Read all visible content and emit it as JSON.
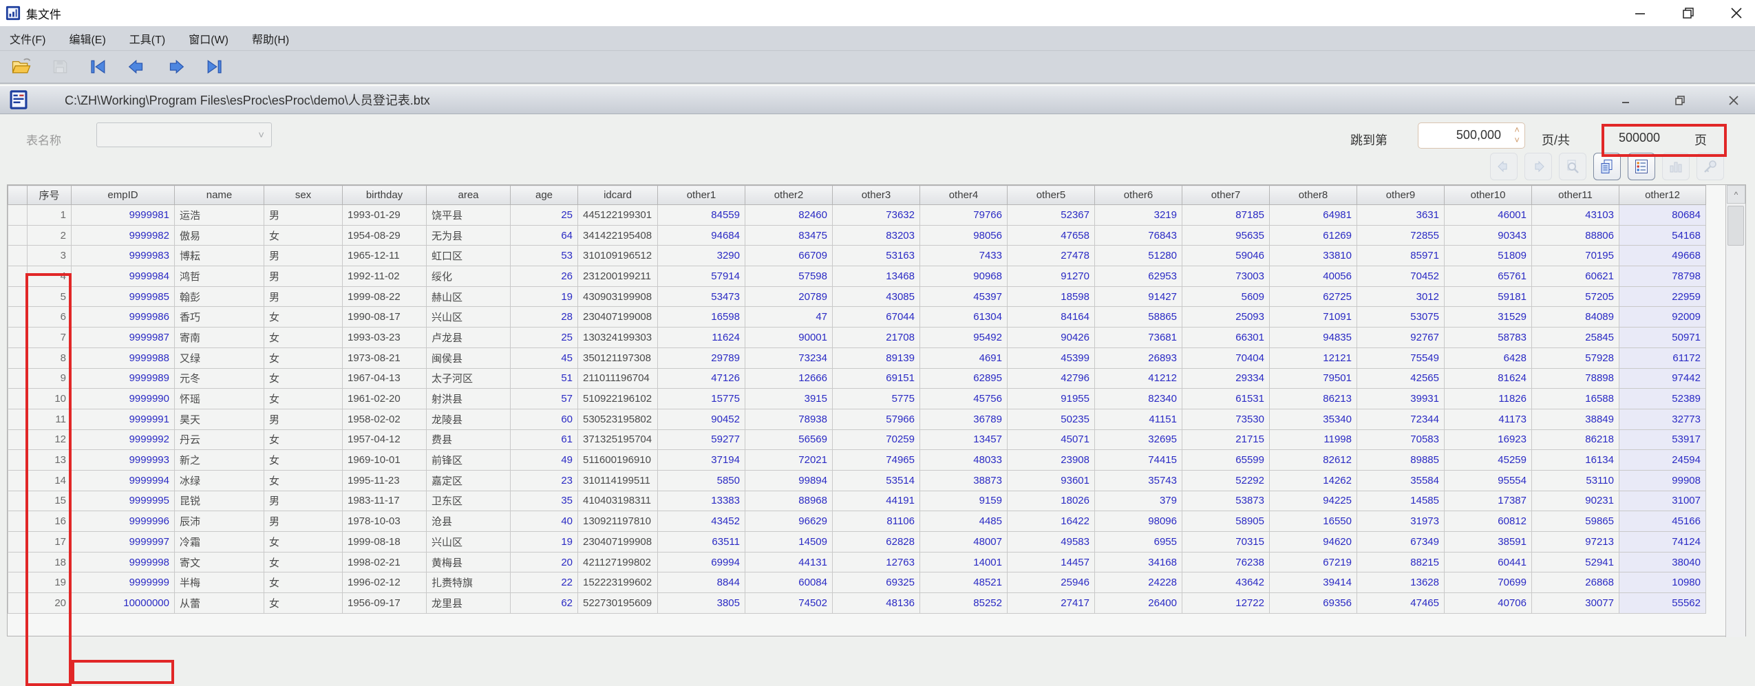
{
  "colors": {
    "annotation_red": "#e12727",
    "number_blue": "#2a2ac4",
    "selected_column_bg": "#e9eaf7"
  },
  "window": {
    "title": "集文件"
  },
  "menu": {
    "items": [
      "文件(F)",
      "编辑(E)",
      "工具(T)",
      "窗口(W)",
      "帮助(H)"
    ]
  },
  "inner_window": {
    "path": "C:\\ZH\\Working\\Program Files\\esProc\\esProc\\demo\\人员登记表.btx"
  },
  "pager": {
    "table_name_label": "表名称",
    "table_name_value": "",
    "jump_label": "跳到第",
    "jump_value": "500,000",
    "of_label": "页/共",
    "total_pages": "500000",
    "unit_label": "页"
  },
  "scrollbar": {
    "up_glyph": "^"
  },
  "table": {
    "columns": [
      "序号",
      "empID",
      "name",
      "sex",
      "birthday",
      "area",
      "age",
      "idcard",
      "other1",
      "other2",
      "other3",
      "other4",
      "other5",
      "other6",
      "other7",
      "other8",
      "other9",
      "other10",
      "other11",
      "other12"
    ],
    "rows": [
      [
        "1",
        "9999981",
        "运浩",
        "男",
        "1993-01-29",
        "饶平县",
        "25",
        "445122199301",
        "84559",
        "82460",
        "73632",
        "79766",
        "52367",
        "3219",
        "87185",
        "64981",
        "3631",
        "46001",
        "43103",
        "80684"
      ],
      [
        "2",
        "9999982",
        "傲易",
        "女",
        "1954-08-29",
        "无为县",
        "64",
        "341422195408",
        "94684",
        "83475",
        "83203",
        "98056",
        "47658",
        "76843",
        "95635",
        "61269",
        "72855",
        "90343",
        "88806",
        "54168"
      ],
      [
        "3",
        "9999983",
        "博耘",
        "男",
        "1965-12-11",
        "虹口区",
        "53",
        "310109196512",
        "3290",
        "66709",
        "53163",
        "7433",
        "27478",
        "51280",
        "59046",
        "33810",
        "85971",
        "51809",
        "70195",
        "49668"
      ],
      [
        "4",
        "9999984",
        "鸿哲",
        "男",
        "1992-11-02",
        "绥化",
        "26",
        "231200199211",
        "57914",
        "57598",
        "13468",
        "90968",
        "91270",
        "62953",
        "73003",
        "40056",
        "70452",
        "65761",
        "60621",
        "78798"
      ],
      [
        "5",
        "9999985",
        "翰彭",
        "男",
        "1999-08-22",
        "赫山区",
        "19",
        "430903199908",
        "53473",
        "20789",
        "43085",
        "45397",
        "18598",
        "91427",
        "5609",
        "62725",
        "3012",
        "59181",
        "57205",
        "22959"
      ],
      [
        "6",
        "9999986",
        "香巧",
        "女",
        "1990-08-17",
        "兴山区",
        "28",
        "230407199008",
        "16598",
        "47",
        "67044",
        "61304",
        "84164",
        "58865",
        "25093",
        "71091",
        "53075",
        "31529",
        "84089",
        "92009"
      ],
      [
        "7",
        "9999987",
        "寄南",
        "女",
        "1993-03-23",
        "卢龙县",
        "25",
        "130324199303",
        "11624",
        "90001",
        "21708",
        "95492",
        "90426",
        "73681",
        "66301",
        "94835",
        "92767",
        "58783",
        "25845",
        "50971"
      ],
      [
        "8",
        "9999988",
        "又绿",
        "女",
        "1973-08-21",
        "闽侯县",
        "45",
        "350121197308",
        "29789",
        "73234",
        "89139",
        "4691",
        "45399",
        "26893",
        "70404",
        "12121",
        "75549",
        "6428",
        "57928",
        "61172"
      ],
      [
        "9",
        "9999989",
        "元冬",
        "女",
        "1967-04-13",
        "太子河区",
        "51",
        "211011196704",
        "47126",
        "12666",
        "69151",
        "62895",
        "42796",
        "41212",
        "29334",
        "79501",
        "42565",
        "81624",
        "78898",
        "97442"
      ],
      [
        "10",
        "9999990",
        "怀瑶",
        "女",
        "1961-02-20",
        "射洪县",
        "57",
        "510922196102",
        "15775",
        "3915",
        "5775",
        "45756",
        "91955",
        "82340",
        "61531",
        "86213",
        "39931",
        "11826",
        "16588",
        "52389"
      ],
      [
        "11",
        "9999991",
        "昊天",
        "男",
        "1958-02-02",
        "龙陵县",
        "60",
        "530523195802",
        "90452",
        "78938",
        "57966",
        "36789",
        "50235",
        "41151",
        "73530",
        "35340",
        "72344",
        "41173",
        "38849",
        "32773"
      ],
      [
        "12",
        "9999992",
        "丹云",
        "女",
        "1957-04-12",
        "费县",
        "61",
        "371325195704",
        "59277",
        "56569",
        "70259",
        "13457",
        "45071",
        "32695",
        "21715",
        "11998",
        "70583",
        "16923",
        "86218",
        "53917"
      ],
      [
        "13",
        "9999993",
        "新之",
        "女",
        "1969-10-01",
        "前锋区",
        "49",
        "511600196910",
        "37194",
        "72021",
        "74965",
        "48033",
        "23908",
        "74415",
        "65599",
        "82612",
        "89885",
        "45259",
        "16134",
        "24594"
      ],
      [
        "14",
        "9999994",
        "冰绿",
        "女",
        "1995-11-23",
        "嘉定区",
        "23",
        "310114199511",
        "5850",
        "99894",
        "53514",
        "38873",
        "93601",
        "35743",
        "52292",
        "14262",
        "35584",
        "95554",
        "53110",
        "99908"
      ],
      [
        "15",
        "9999995",
        "昆锐",
        "男",
        "1983-11-17",
        "卫东区",
        "35",
        "410403198311",
        "13383",
        "88968",
        "44191",
        "9159",
        "18026",
        "379",
        "53873",
        "94225",
        "14585",
        "17387",
        "90231",
        "31007"
      ],
      [
        "16",
        "9999996",
        "辰沛",
        "男",
        "1978-10-03",
        "沧县",
        "40",
        "130921197810",
        "43452",
        "96629",
        "81106",
        "4485",
        "16422",
        "98096",
        "58905",
        "16550",
        "31973",
        "60812",
        "59865",
        "45166"
      ],
      [
        "17",
        "9999997",
        "冷霜",
        "女",
        "1999-08-18",
        "兴山区",
        "19",
        "230407199908",
        "63511",
        "14509",
        "62828",
        "48007",
        "49583",
        "6955",
        "70315",
        "94620",
        "67349",
        "38591",
        "97213",
        "74124"
      ],
      [
        "18",
        "9999998",
        "寄文",
        "女",
        "1998-02-21",
        "黄梅县",
        "20",
        "421127199802",
        "69994",
        "44131",
        "12763",
        "14001",
        "14457",
        "34168",
        "76238",
        "67219",
        "88215",
        "60441",
        "52941",
        "38040"
      ],
      [
        "19",
        "9999999",
        "半梅",
        "女",
        "1996-02-12",
        "扎赉特旗",
        "22",
        "152223199602",
        "8844",
        "60084",
        "69325",
        "48521",
        "25946",
        "24228",
        "43642",
        "39414",
        "13628",
        "70699",
        "26868",
        "10980"
      ],
      [
        "20",
        "10000000",
        "从蕾",
        "女",
        "1956-09-17",
        "龙里县",
        "62",
        "522730195609",
        "3805",
        "74502",
        "48136",
        "85252",
        "27417",
        "26400",
        "12722",
        "69356",
        "47465",
        "40706",
        "30077",
        "55562"
      ]
    ]
  }
}
